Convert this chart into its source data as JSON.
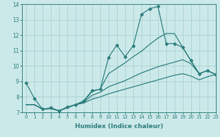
{
  "title": "",
  "xlabel": "Humidex (Indice chaleur)",
  "ylabel": "",
  "background_color": "#cce9e9",
  "grid_color": "#add4d4",
  "line_color": "#2d7d7d",
  "xlim": [
    -0.5,
    23
  ],
  "ylim": [
    7,
    14
  ],
  "yticks": [
    7,
    8,
    9,
    10,
    11,
    12,
    13,
    14
  ],
  "xticks": [
    0,
    1,
    2,
    3,
    4,
    5,
    6,
    7,
    8,
    9,
    10,
    11,
    12,
    13,
    14,
    15,
    16,
    17,
    18,
    19,
    20,
    21,
    22,
    23
  ],
  "series": [
    {
      "x": [
        0,
        1,
        2,
        3,
        4,
        5,
        6,
        7,
        8,
        9,
        10,
        11,
        12,
        13,
        14,
        15,
        16,
        17,
        18,
        19,
        20,
        21,
        22,
        23
      ],
      "y": [
        8.9,
        7.9,
        7.2,
        7.3,
        7.1,
        7.35,
        7.5,
        7.75,
        8.4,
        8.5,
        10.55,
        11.35,
        10.6,
        11.3,
        13.35,
        13.7,
        13.85,
        11.45,
        11.45,
        11.2,
        10.35,
        9.5,
        9.7,
        9.45
      ],
      "marker": "D",
      "markersize": 2.5
    },
    {
      "x": [
        0,
        1,
        2,
        3,
        4,
        5,
        6,
        7,
        8,
        9,
        10,
        11,
        12,
        13,
        14,
        15,
        16,
        17,
        18,
        19,
        20,
        21,
        22,
        23
      ],
      "y": [
        7.5,
        7.5,
        7.2,
        7.25,
        7.1,
        7.3,
        7.5,
        7.7,
        8.35,
        8.5,
        9.5,
        9.85,
        10.2,
        10.6,
        10.95,
        11.4,
        11.8,
        12.1,
        12.1,
        11.2,
        10.35,
        9.5,
        9.7,
        9.45
      ],
      "marker": null,
      "markersize": 0
    },
    {
      "x": [
        0,
        1,
        2,
        3,
        4,
        5,
        6,
        7,
        8,
        9,
        10,
        11,
        12,
        13,
        14,
        15,
        16,
        17,
        18,
        19,
        20,
        21,
        22,
        23
      ],
      "y": [
        7.5,
        7.5,
        7.2,
        7.25,
        7.1,
        7.3,
        7.5,
        7.65,
        8.1,
        8.3,
        8.65,
        8.85,
        9.05,
        9.3,
        9.55,
        9.75,
        9.95,
        10.1,
        10.25,
        10.4,
        10.15,
        9.5,
        9.7,
        9.45
      ],
      "marker": null,
      "markersize": 0
    },
    {
      "x": [
        0,
        1,
        2,
        3,
        4,
        5,
        6,
        7,
        8,
        9,
        10,
        11,
        12,
        13,
        14,
        15,
        16,
        17,
        18,
        19,
        20,
        21,
        22,
        23
      ],
      "y": [
        7.5,
        7.5,
        7.2,
        7.25,
        7.1,
        7.3,
        7.5,
        7.6,
        7.85,
        8.0,
        8.2,
        8.35,
        8.5,
        8.65,
        8.8,
        8.95,
        9.1,
        9.25,
        9.4,
        9.5,
        9.35,
        9.1,
        9.3,
        9.45
      ],
      "marker": null,
      "markersize": 0
    }
  ]
}
